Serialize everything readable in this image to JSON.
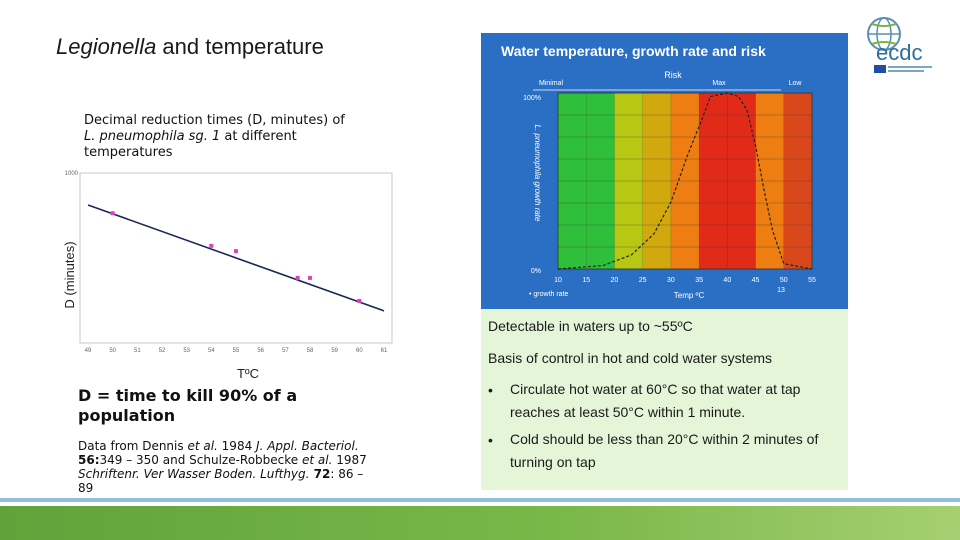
{
  "title": {
    "italic": "Legionella",
    "rest": " and temperature"
  },
  "logo": {
    "text": "ecdc",
    "icon": "globe-icon"
  },
  "chart1_caption": {
    "line1": "Decimal reduction times (D, minutes) of",
    "species": "L. pneumophila sg. 1",
    "line2_rest": " at different",
    "line3": "temperatures"
  },
  "definition": "D = time to kill 90% of a population",
  "source": {
    "a": "Data from Dennis ",
    "b": "et al.",
    "c": " 1984 ",
    "d": "J. Appl. Bacteriol.",
    "e": "56:",
    "f": "349 – 350 and Schulze-Robbecke ",
    "g": "et al.",
    "h": " 1987",
    "i": "Schriftenr. Ver Wasser Boden. Lufthyg.",
    "j": " 72",
    "k": ": 86 –",
    "l": "89"
  },
  "green_panel": {
    "line1": "Detectable in waters up to ~55ºC",
    "line2": "Basis of control in hot and cold water systems",
    "bullet_char": "•",
    "bullets": [
      "Circulate hot water at 60°C so that water at tap reaches at least 50°C within 1 minute.",
      "Cold should be less than 20°C within 2 minutes of turning on tap"
    ]
  },
  "chart_data": [
    {
      "type": "scatter",
      "xlabel": "TºC",
      "ylabel": "D (minutes)",
      "x_ticks": [
        "49",
        "50",
        "51",
        "52",
        "53",
        "54",
        "55",
        "56",
        "57",
        "58",
        "59",
        "60",
        "61"
      ],
      "y_ticks": [
        "1000"
      ],
      "xlim": [
        49,
        61
      ],
      "ylim_log": [
        0.1,
        1000
      ],
      "points": [
        {
          "x": 50.0,
          "y": 124
        },
        {
          "x": 54.0,
          "y": 19
        },
        {
          "x": 55.0,
          "y": 14
        },
        {
          "x": 57.5,
          "y": 3.0
        },
        {
          "x": 58.0,
          "y": 3.0
        },
        {
          "x": 60.0,
          "y": 0.8
        }
      ],
      "fit_line": [
        {
          "x": 49,
          "y": 200
        },
        {
          "x": 61,
          "y": 0.45
        }
      ],
      "grid": false
    },
    {
      "type": "area",
      "title": "Water temperature, growth rate and risk",
      "top_labels": [
        "Minimal",
        "Risk",
        "Max",
        "Low"
      ],
      "ylabel": "L. pneumophila growth rate",
      "y_ticks": [
        "100%",
        "0%"
      ],
      "xlabel": "Temp ºC",
      "x_ticks": [
        "10",
        "15",
        "20",
        "25",
        "30",
        "35",
        "40",
        "45",
        "50",
        "55"
      ],
      "extra_label": "13",
      "legend": "• growth rate",
      "band_colors": [
        "#2fbf3a",
        "#2fbf3a",
        "#b6c814",
        "#d2a80f",
        "#ee7d12",
        "#e22a18",
        "#e22a18",
        "#ee7d12",
        "#d9481a"
      ],
      "curve": [
        {
          "x": 10,
          "y": 0
        },
        {
          "x": 18,
          "y": 2
        },
        {
          "x": 23,
          "y": 8
        },
        {
          "x": 27,
          "y": 20
        },
        {
          "x": 30,
          "y": 38
        },
        {
          "x": 33,
          "y": 65
        },
        {
          "x": 35.5,
          "y": 85
        },
        {
          "x": 37,
          "y": 98
        },
        {
          "x": 40,
          "y": 100
        },
        {
          "x": 42,
          "y": 98
        },
        {
          "x": 43.5,
          "y": 90
        },
        {
          "x": 45,
          "y": 70
        },
        {
          "x": 46.5,
          "y": 45
        },
        {
          "x": 48,
          "y": 22
        },
        {
          "x": 50,
          "y": 3
        },
        {
          "x": 55,
          "y": 0
        }
      ],
      "xlim": [
        10,
        55
      ],
      "ylim": [
        0,
        100
      ]
    }
  ]
}
